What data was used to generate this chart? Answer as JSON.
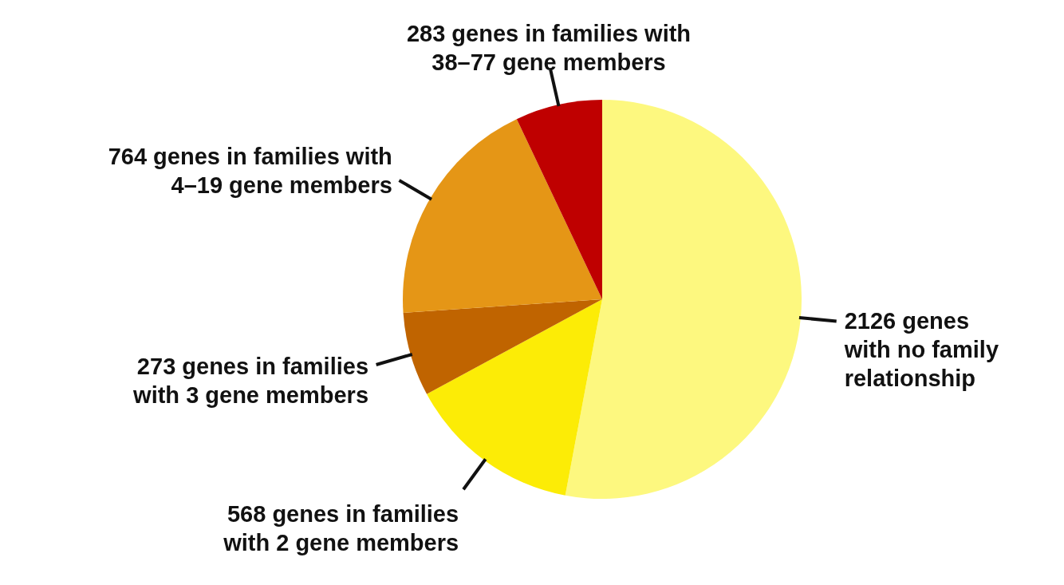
{
  "chart_data": {
    "type": "pie",
    "categories": [
      "2126 genes\nwith no family\nrelationship",
      "568 genes in families\nwith 2 gene members",
      "273 genes in families\nwith 3 gene members",
      "764 genes in families with\n4–19 gene members",
      "283 genes in families with\n38–77 gene members"
    ],
    "values": [
      2126,
      568,
      273,
      764,
      283
    ],
    "colors": [
      "#fdf87f",
      "#fcec06",
      "#c06400",
      "#e59616",
      "#bf0000"
    ]
  }
}
